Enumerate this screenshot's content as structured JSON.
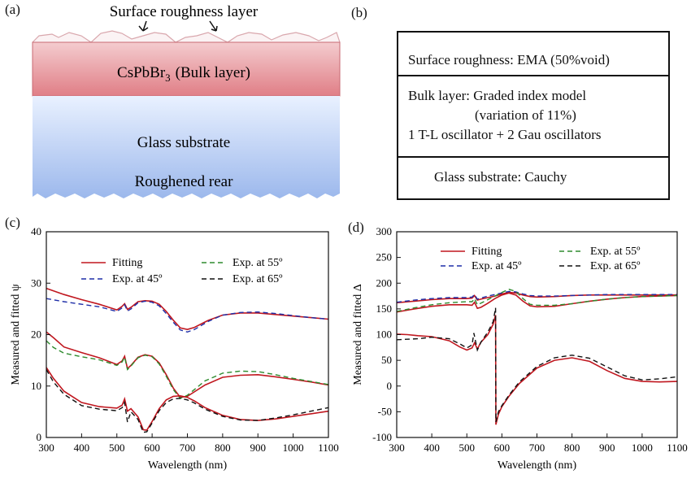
{
  "panels": {
    "a": "(a)",
    "b": "(b)",
    "c": "(c)",
    "d": "(d)"
  },
  "stack": {
    "roughness_label": "Surface roughness layer",
    "bulk_formula": "CsPbBr",
    "bulk_subscript": "3",
    "bulk_suffix": "(Bulk layer)",
    "glass_label": "Glass substrate",
    "rear_label": "Roughened rear"
  },
  "model": {
    "row1": "Surface roughness: EMA (50%void)",
    "row2_line1": "Bulk layer: Graded index model",
    "row2_line2": "(variation of 11%)",
    "row2_line3": "1 T-L oscillator + 2 Gau oscillators",
    "row3": "Glass substrate: Cauchy"
  },
  "colors": {
    "fit": "#c0171f",
    "exp45": "#1f2fa8",
    "exp55": "#2e8b2e",
    "exp65": "#111111",
    "bulk_top": "#f4cccf",
    "bulk_bottom": "#e07e86",
    "glass_top": "#e9f1ff",
    "glass_bottom": "#9cb8ec"
  },
  "chart_data": [
    {
      "type": "line",
      "xlabel": "Wavelength (nm)",
      "ylabel": "Measured and fitted ψ",
      "xlim": [
        300,
        1100
      ],
      "ylim": [
        0,
        40
      ],
      "xticks": [
        300,
        400,
        500,
        600,
        700,
        800,
        900,
        1000,
        1100
      ],
      "yticks": [
        0,
        10,
        20,
        30,
        40
      ],
      "legend": [
        {
          "name": "Fitting",
          "style": "solid",
          "color": "#c0171f"
        },
        {
          "name": "Exp. at 45º",
          "style": "dashed",
          "color": "#1f2fa8"
        },
        {
          "name": "Exp. at 55º",
          "style": "dashed",
          "color": "#2e8b2e"
        },
        {
          "name": "Exp. at 65º",
          "style": "dashed",
          "color": "#111111"
        }
      ],
      "series": [
        {
          "angle": 45,
          "kind": "fit",
          "color": "#c0171f",
          "dash": false,
          "x": [
            300,
            350,
            400,
            450,
            500,
            515,
            522,
            530,
            540,
            560,
            580,
            600,
            620,
            640,
            660,
            680,
            700,
            720,
            760,
            800,
            850,
            900,
            950,
            1000,
            1050,
            1100
          ],
          "y": [
            29,
            27.8,
            26.8,
            25.9,
            24.8,
            25.5,
            26.0,
            24.9,
            25.3,
            26.4,
            26.6,
            26.5,
            25.9,
            24.5,
            22.8,
            21.3,
            21.0,
            21.4,
            22.8,
            23.8,
            24.2,
            24.2,
            23.9,
            23.6,
            23.3,
            23.0
          ]
        },
        {
          "angle": 45,
          "kind": "exp",
          "color": "#1f2fa8",
          "dash": true,
          "x": [
            300,
            350,
            400,
            450,
            500,
            515,
            522,
            530,
            540,
            560,
            580,
            600,
            620,
            640,
            660,
            680,
            700,
            720,
            760,
            800,
            850,
            900,
            950,
            1000,
            1050,
            1100
          ],
          "y": [
            27,
            26.4,
            25.9,
            25.4,
            24.5,
            25.2,
            25.8,
            24.6,
            25.0,
            26.2,
            26.5,
            26.3,
            25.6,
            24.1,
            22.4,
            20.9,
            20.5,
            21.0,
            22.6,
            23.8,
            24.3,
            24.4,
            24.1,
            23.7,
            23.3,
            23.0
          ]
        },
        {
          "angle": 55,
          "kind": "fit",
          "color": "#c0171f",
          "dash": false,
          "x": [
            300,
            320,
            350,
            400,
            450,
            500,
            515,
            522,
            530,
            540,
            560,
            580,
            600,
            620,
            640,
            660,
            680,
            700,
            750,
            800,
            850,
            900,
            950,
            1000,
            1050,
            1100
          ],
          "y": [
            20.5,
            19.4,
            17.6,
            16.5,
            15.5,
            14.2,
            14.9,
            15.8,
            13.4,
            14.0,
            15.6,
            16.1,
            15.8,
            14.5,
            12.2,
            9.6,
            7.8,
            8.0,
            10.2,
            11.7,
            12.1,
            12.2,
            11.8,
            11.3,
            10.8,
            10.2
          ]
        },
        {
          "angle": 55,
          "kind": "exp",
          "color": "#2e8b2e",
          "dash": true,
          "x": [
            300,
            320,
            350,
            400,
            450,
            500,
            515,
            522,
            530,
            540,
            560,
            580,
            600,
            620,
            640,
            660,
            680,
            700,
            750,
            800,
            850,
            900,
            950,
            1000,
            1050,
            1100
          ],
          "y": [
            18.8,
            17.5,
            16.4,
            15.7,
            15.1,
            14.0,
            14.7,
            15.6,
            13.2,
            13.9,
            15.5,
            16.0,
            15.7,
            14.3,
            11.9,
            9.3,
            7.6,
            8.2,
            11.0,
            12.5,
            12.9,
            12.8,
            12.2,
            11.5,
            10.9,
            10.3
          ]
        },
        {
          "angle": 65,
          "kind": "fit",
          "color": "#c0171f",
          "dash": false,
          "x": [
            300,
            320,
            350,
            400,
            450,
            500,
            515,
            522,
            530,
            540,
            560,
            575,
            585,
            600,
            620,
            640,
            660,
            680,
            700,
            720,
            750,
            800,
            850,
            900,
            950,
            1000,
            1050,
            1100
          ],
          "y": [
            13.6,
            11.5,
            9.0,
            6.8,
            6.0,
            5.7,
            6.3,
            7.5,
            5.1,
            5.6,
            4.0,
            1.5,
            1.4,
            3.1,
            5.6,
            7.3,
            8.0,
            8.1,
            7.8,
            7.1,
            5.8,
            4.3,
            3.5,
            3.3,
            3.6,
            4.1,
            4.6,
            5.1
          ]
        },
        {
          "angle": 65,
          "kind": "exp",
          "color": "#111111",
          "dash": true,
          "x": [
            300,
            320,
            350,
            400,
            450,
            500,
            515,
            522,
            530,
            540,
            560,
            575,
            585,
            600,
            620,
            640,
            660,
            680,
            700,
            720,
            750,
            800,
            850,
            900,
            950,
            1000,
            1050,
            1100
          ],
          "y": [
            13.2,
            10.8,
            8.4,
            6.2,
            5.5,
            5.2,
            5.8,
            6.8,
            3.0,
            5.0,
            3.5,
            1.0,
            1.1,
            2.8,
            5.2,
            6.8,
            7.5,
            7.6,
            7.3,
            6.7,
            5.5,
            4.1,
            3.4,
            3.3,
            3.8,
            4.4,
            5.1,
            5.8
          ]
        }
      ]
    },
    {
      "type": "line",
      "xlabel": "Wavelength (nm)",
      "ylabel": "Measured and fitted Δ",
      "xlim": [
        300,
        1100
      ],
      "ylim": [
        -100,
        300
      ],
      "xticks": [
        300,
        400,
        500,
        600,
        700,
        800,
        900,
        1000,
        1100
      ],
      "yticks": [
        -100,
        -50,
        0,
        50,
        100,
        150,
        200,
        250,
        300
      ],
      "legend": [
        {
          "name": "Fitting",
          "style": "solid",
          "color": "#c0171f"
        },
        {
          "name": "Exp. at 45º",
          "style": "dashed",
          "color": "#1f2fa8"
        },
        {
          "name": "Exp. at 55º",
          "style": "dashed",
          "color": "#2e8b2e"
        },
        {
          "name": "Exp. at 65º",
          "style": "dashed",
          "color": "#111111"
        }
      ],
      "series": [
        {
          "angle": 45,
          "kind": "fit",
          "color": "#c0171f",
          "dash": false,
          "x": [
            300,
            350,
            400,
            450,
            500,
            515,
            522,
            530,
            540,
            560,
            580,
            600,
            620,
            640,
            660,
            680,
            700,
            750,
            800,
            850,
            900,
            950,
            1000,
            1050,
            1100
          ],
          "y": [
            162,
            165,
            168,
            170,
            170,
            171,
            176,
            167,
            169,
            172,
            175,
            179,
            182,
            181,
            177,
            174,
            173,
            174,
            176,
            177,
            177,
            177,
            177,
            177,
            177
          ]
        },
        {
          "angle": 45,
          "kind": "exp",
          "color": "#1f2fa8",
          "dash": true,
          "x": [
            300,
            350,
            400,
            450,
            500,
            515,
            522,
            530,
            540,
            560,
            580,
            600,
            620,
            640,
            660,
            680,
            700,
            750,
            800,
            850,
            900,
            950,
            1000,
            1050,
            1100
          ],
          "y": [
            163,
            167,
            170,
            172,
            172,
            173,
            178,
            169,
            171,
            175,
            178,
            181,
            184,
            183,
            179,
            176,
            175,
            175,
            176,
            177,
            178,
            178,
            178,
            178,
            178
          ]
        },
        {
          "angle": 55,
          "kind": "fit",
          "color": "#c0171f",
          "dash": false,
          "x": [
            300,
            350,
            400,
            450,
            500,
            515,
            522,
            530,
            540,
            560,
            580,
            600,
            620,
            640,
            660,
            680,
            700,
            750,
            800,
            850,
            900,
            950,
            1000,
            1050,
            1100
          ],
          "y": [
            144,
            150,
            155,
            158,
            158,
            157,
            163,
            151,
            153,
            161,
            170,
            177,
            181,
            177,
            165,
            156,
            154,
            155,
            160,
            165,
            169,
            172,
            174,
            175,
            176
          ]
        },
        {
          "angle": 55,
          "kind": "exp",
          "color": "#2e8b2e",
          "dash": true,
          "x": [
            300,
            350,
            400,
            450,
            500,
            515,
            522,
            530,
            540,
            560,
            580,
            600,
            620,
            640,
            660,
            680,
            700,
            750,
            800,
            850,
            900,
            950,
            1000,
            1050,
            1100
          ],
          "y": [
            145,
            152,
            158,
            162,
            164,
            164,
            170,
            158,
            161,
            168,
            175,
            182,
            188,
            184,
            170,
            159,
            157,
            157,
            160,
            165,
            169,
            172,
            174,
            175,
            176
          ]
        },
        {
          "angle": 65,
          "kind": "fit",
          "color": "#c0171f",
          "dash": false,
          "x": [
            300,
            330,
            360,
            400,
            450,
            480,
            500,
            515,
            522,
            530,
            540,
            560,
            575,
            582,
            583,
            590,
            600,
            620,
            650,
            700,
            750,
            800,
            850,
            900,
            950,
            1000,
            1050,
            1100
          ],
          "y": [
            101,
            100,
            98,
            96,
            88,
            76,
            70,
            74,
            84,
            72,
            85,
            100,
            120,
            138,
            -75,
            -55,
            -40,
            -20,
            5,
            35,
            50,
            55,
            48,
            30,
            15,
            9,
            8,
            9
          ]
        },
        {
          "angle": 65,
          "kind": "exp",
          "color": "#111111",
          "dash": true,
          "x": [
            300,
            330,
            360,
            400,
            450,
            480,
            500,
            515,
            520,
            530,
            540,
            560,
            575,
            582,
            583,
            590,
            600,
            620,
            650,
            700,
            750,
            800,
            850,
            900,
            950,
            1000,
            1050,
            1100
          ],
          "y": [
            90,
            91,
            92,
            95,
            92,
            82,
            74,
            80,
            103,
            70,
            85,
            105,
            125,
            152,
            -70,
            -50,
            -38,
            -18,
            8,
            38,
            55,
            60,
            54,
            37,
            20,
            12,
            14,
            18
          ]
        }
      ]
    }
  ]
}
